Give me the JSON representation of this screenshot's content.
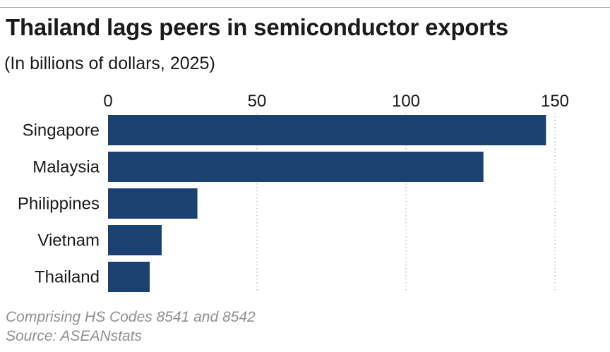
{
  "title": "Thailand lags peers in semiconductor exports",
  "subtitle": "(In billions of dollars, 2025)",
  "note": "Comprising HS Codes 8541 and 8542",
  "source": "Source: ASEANstats",
  "chart_data": {
    "type": "bar",
    "orientation": "horizontal",
    "categories": [
      "Singapore",
      "Malaysia",
      "Philippines",
      "Vietnam",
      "Thailand"
    ],
    "values": [
      147,
      126,
      30,
      18,
      14
    ],
    "xticks": [
      0,
      50,
      100,
      150
    ],
    "xlim": [
      0,
      150
    ],
    "xlabel": "",
    "ylabel": "",
    "grid": "vertical dotted",
    "bar_color": "#1b4170"
  }
}
